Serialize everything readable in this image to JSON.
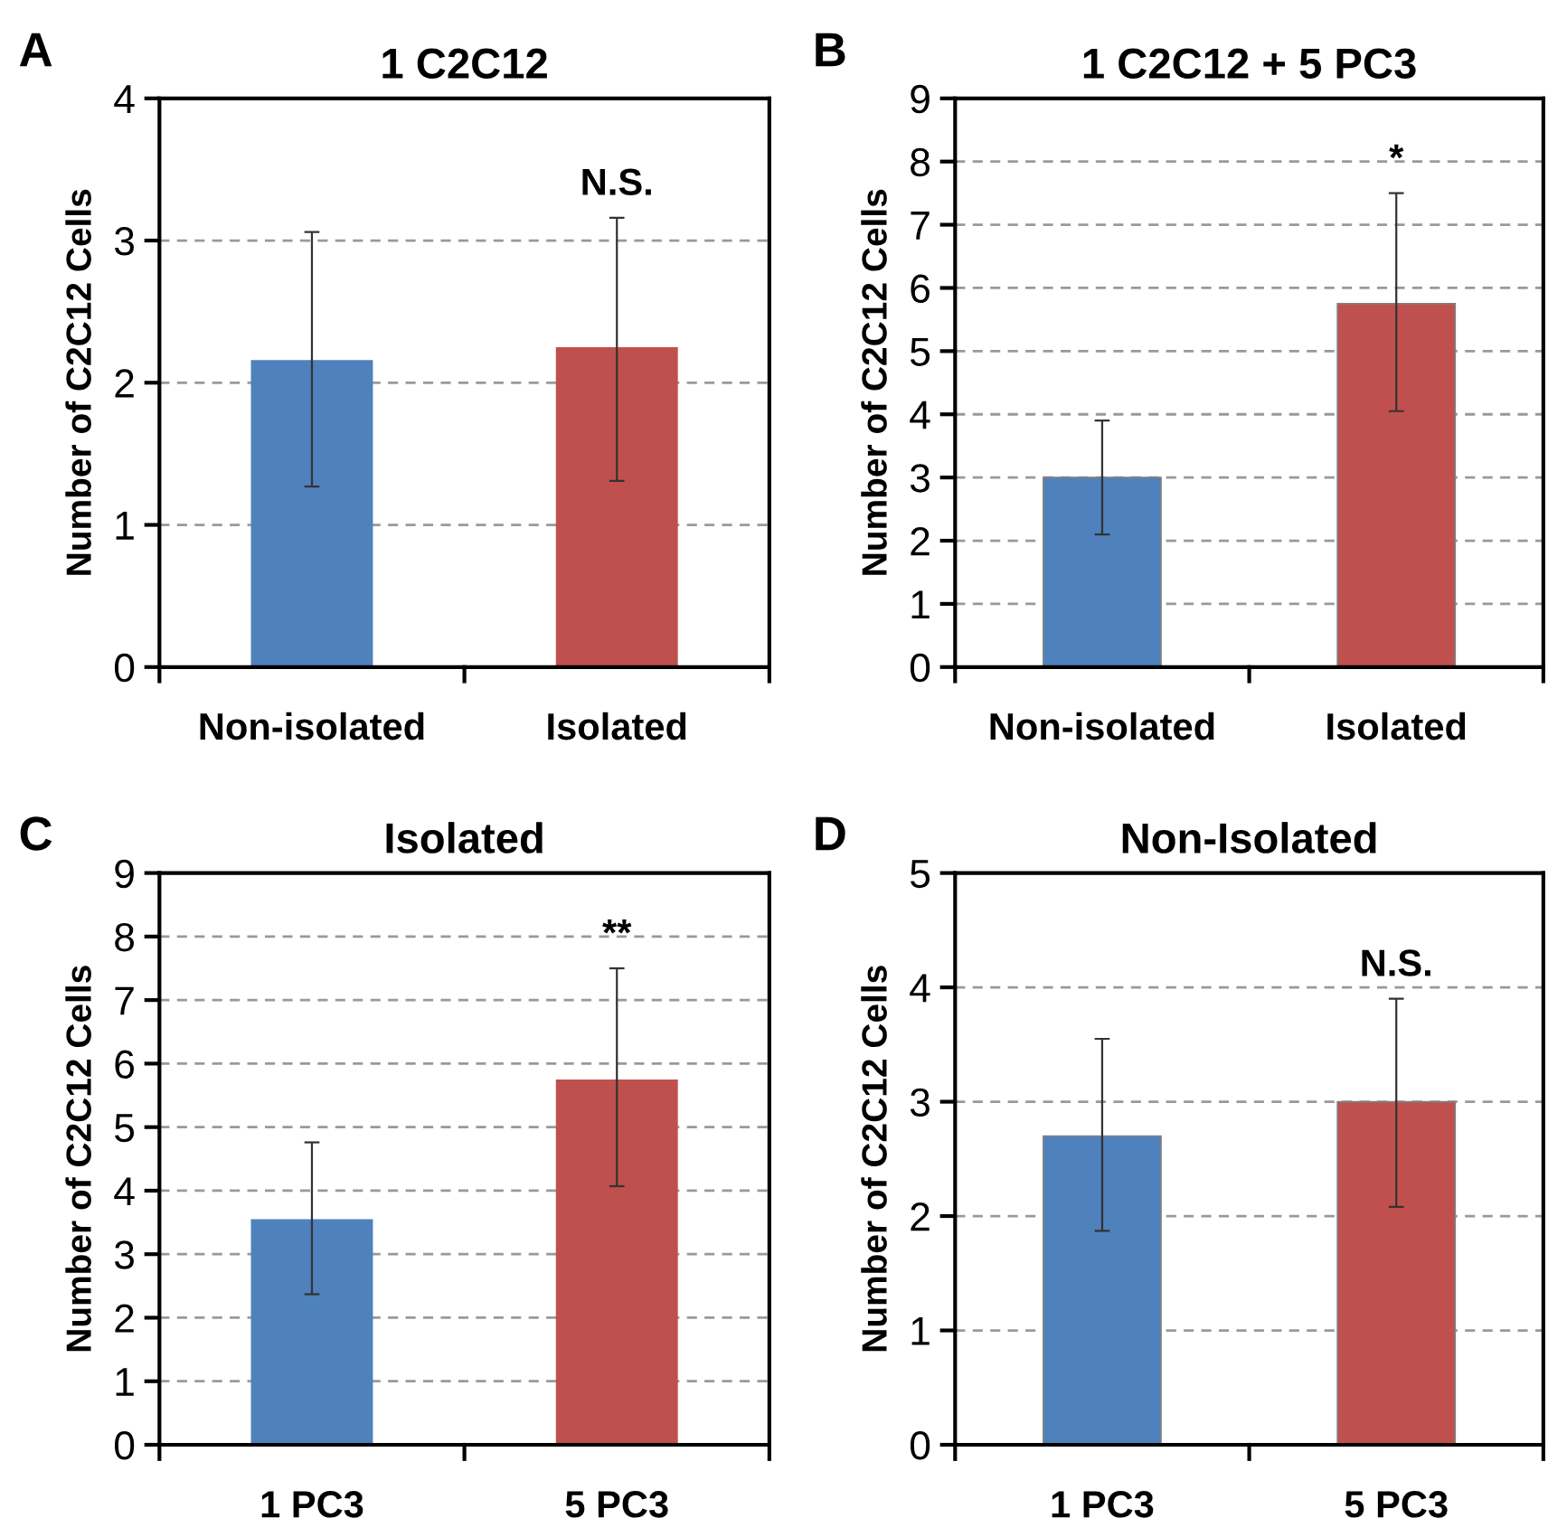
{
  "chart_data": [
    {
      "type": "bar",
      "title": "1 C2C12",
      "ylabel": "Number of C2C12 Cells",
      "categories": [
        "Non-isolated",
        "Isolated"
      ],
      "series": [
        {
          "colors": [
            "#4f81bd",
            "#c0504d"
          ],
          "values": [
            2.16,
            2.25
          ],
          "errors": [
            [
              1.27,
              3.06
            ],
            [
              1.31,
              3.16
            ]
          ]
        }
      ],
      "ylim": [
        0,
        4
      ],
      "yticks": [
        0,
        1,
        2,
        3,
        4
      ],
      "grid": "y",
      "annotations": [
        "A",
        "N.S."
      ]
    },
    {
      "type": "bar",
      "title": "1 C2C12 + 5 PC3",
      "ylabel": "Number of C2C12 Cells",
      "categories": [
        "Non-isolated",
        "Isolated"
      ],
      "series": [
        {
          "colors": [
            "#4f81bd",
            "#c0504d"
          ],
          "values": [
            3.0,
            5.75
          ],
          "errors": [
            [
              2.1,
              3.9
            ],
            [
              4.05,
              7.5
            ]
          ]
        }
      ],
      "ylim": [
        0,
        9
      ],
      "yticks": [
        0,
        1,
        2,
        3,
        4,
        5,
        6,
        7,
        8,
        9
      ],
      "grid": "y",
      "annotations": [
        "B",
        "*"
      ]
    },
    {
      "type": "bar",
      "title": "Isolated",
      "ylabel": "Number of C2C12 Cells",
      "categories": [
        "1 PC3",
        "5 PC3"
      ],
      "series": [
        {
          "colors": [
            "#4f81bd",
            "#c0504d"
          ],
          "values": [
            3.55,
            5.75
          ],
          "errors": [
            [
              2.37,
              4.76
            ],
            [
              4.07,
              7.5
            ]
          ]
        }
      ],
      "ylim": [
        0,
        9
      ],
      "yticks": [
        0,
        1,
        2,
        3,
        4,
        5,
        6,
        7,
        8,
        9
      ],
      "grid": "y",
      "annotations": [
        "C",
        "**"
      ]
    },
    {
      "type": "bar",
      "title": "Non-Isolated",
      "ylabel": "Number of C2C12 Cells",
      "categories": [
        "1 PC3",
        "5 PC3"
      ],
      "series": [
        {
          "colors": [
            "#4f81bd",
            "#c0504d"
          ],
          "values": [
            2.7,
            3.0
          ],
          "errors": [
            [
              1.87,
              3.55
            ],
            [
              2.08,
              3.9
            ]
          ]
        }
      ],
      "ylim": [
        0,
        5
      ],
      "yticks": [
        0,
        1,
        2,
        3,
        4,
        5
      ],
      "grid": "y",
      "annotations": [
        "D",
        "N.S."
      ]
    }
  ]
}
